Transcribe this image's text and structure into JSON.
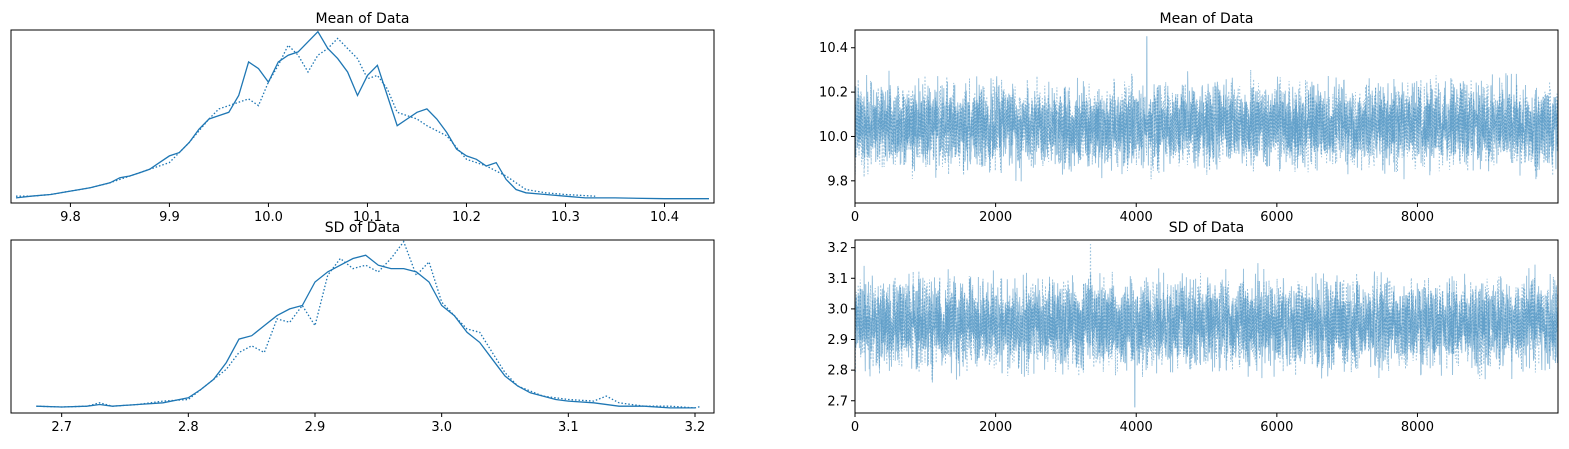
{
  "colors": {
    "line": "#1f77b4",
    "frame": "#000000"
  },
  "chart_data": [
    {
      "type": "line",
      "panel": "density",
      "title": "Mean of Data",
      "xlim": [
        9.74,
        10.45
      ],
      "ylim": [
        0,
        1.0
      ],
      "xticks": [
        "9.8",
        "9.9",
        "10.0",
        "10.1",
        "10.2",
        "10.3",
        "10.4"
      ],
      "yticks": [],
      "series": [
        {
          "style": "solid",
          "x": [
            9.745,
            9.76,
            9.78,
            9.8,
            9.82,
            9.84,
            9.85,
            9.86,
            9.87,
            9.88,
            9.89,
            9.9,
            9.91,
            9.92,
            9.93,
            9.94,
            9.95,
            9.96,
            9.97,
            9.98,
            9.99,
            10.0,
            10.01,
            10.02,
            10.03,
            10.04,
            10.05,
            10.06,
            10.07,
            10.08,
            10.09,
            10.1,
            10.11,
            10.12,
            10.13,
            10.14,
            10.15,
            10.16,
            10.17,
            10.18,
            10.19,
            10.2,
            10.21,
            10.22,
            10.23,
            10.24,
            10.25,
            10.26,
            10.28,
            10.3,
            10.32,
            10.35,
            10.4,
            10.445
          ],
          "y": [
            0.01,
            0.02,
            0.03,
            0.05,
            0.07,
            0.1,
            0.13,
            0.14,
            0.16,
            0.18,
            0.22,
            0.26,
            0.28,
            0.34,
            0.42,
            0.48,
            0.5,
            0.52,
            0.62,
            0.82,
            0.78,
            0.7,
            0.82,
            0.86,
            0.88,
            0.94,
            1.0,
            0.9,
            0.84,
            0.76,
            0.62,
            0.74,
            0.8,
            0.62,
            0.44,
            0.48,
            0.52,
            0.54,
            0.48,
            0.4,
            0.3,
            0.26,
            0.24,
            0.2,
            0.22,
            0.12,
            0.06,
            0.04,
            0.03,
            0.02,
            0.01,
            0.01,
            0.005,
            0.005
          ]
        },
        {
          "style": "dotted",
          "x": [
            9.745,
            9.76,
            9.78,
            9.8,
            9.82,
            9.84,
            9.86,
            9.88,
            9.9,
            9.92,
            9.94,
            9.95,
            9.96,
            9.97,
            9.98,
            9.99,
            10.0,
            10.01,
            10.02,
            10.03,
            10.04,
            10.05,
            10.06,
            10.07,
            10.08,
            10.09,
            10.1,
            10.11,
            10.12,
            10.13,
            10.14,
            10.15,
            10.16,
            10.18,
            10.2,
            10.22,
            10.24,
            10.26,
            10.28,
            10.3,
            10.33
          ],
          "y": [
            0.02,
            0.02,
            0.03,
            0.05,
            0.07,
            0.1,
            0.14,
            0.18,
            0.22,
            0.34,
            0.48,
            0.54,
            0.56,
            0.58,
            0.6,
            0.56,
            0.7,
            0.8,
            0.92,
            0.86,
            0.76,
            0.86,
            0.9,
            0.96,
            0.9,
            0.84,
            0.72,
            0.74,
            0.66,
            0.52,
            0.5,
            0.48,
            0.44,
            0.38,
            0.24,
            0.2,
            0.14,
            0.06,
            0.04,
            0.03,
            0.02
          ]
        }
      ]
    },
    {
      "type": "line",
      "panel": "trace",
      "title": "Mean of Data",
      "xlim": [
        0,
        9999
      ],
      "ylim": [
        9.7,
        10.48
      ],
      "xticks": [
        "0",
        "2000",
        "4000",
        "6000",
        "8000"
      ],
      "xtick_values": [
        0,
        2000,
        4000,
        6000,
        8000
      ],
      "yticks": [
        "9.8",
        "10.0",
        "10.2",
        "10.4"
      ],
      "ytick_values": [
        9.8,
        10.0,
        10.2,
        10.4
      ],
      "series": [
        {
          "style": "solid",
          "n": 10000,
          "center": 10.05,
          "spread": 0.09,
          "min": 9.74,
          "max": 10.45,
          "peak": {
            "x": 4150,
            "y": 10.45
          }
        },
        {
          "style": "dotted",
          "n": 10000,
          "center": 10.05,
          "spread": 0.085,
          "min": 9.76,
          "max": 10.36
        }
      ]
    },
    {
      "type": "line",
      "panel": "density",
      "title": "SD of Data",
      "xlim": [
        2.66,
        3.215
      ],
      "ylim": [
        0,
        1.0
      ],
      "xticks": [
        "2.7",
        "2.8",
        "2.9",
        "3.0",
        "3.1",
        "3.2"
      ],
      "yticks": [],
      "series": [
        {
          "style": "solid",
          "x": [
            2.68,
            2.7,
            2.72,
            2.73,
            2.74,
            2.76,
            2.78,
            2.8,
            2.81,
            2.82,
            2.83,
            2.84,
            2.85,
            2.86,
            2.87,
            2.88,
            2.89,
            2.9,
            2.91,
            2.92,
            2.93,
            2.94,
            2.95,
            2.96,
            2.97,
            2.98,
            2.99,
            3.0,
            3.01,
            3.02,
            3.03,
            3.04,
            3.05,
            3.06,
            3.07,
            3.08,
            3.09,
            3.1,
            3.12,
            3.14,
            3.16,
            3.18,
            3.2
          ],
          "y": [
            0.02,
            0.015,
            0.02,
            0.03,
            0.02,
            0.03,
            0.04,
            0.07,
            0.12,
            0.18,
            0.28,
            0.42,
            0.44,
            0.5,
            0.56,
            0.6,
            0.62,
            0.76,
            0.82,
            0.86,
            0.9,
            0.92,
            0.86,
            0.84,
            0.84,
            0.82,
            0.76,
            0.62,
            0.56,
            0.46,
            0.4,
            0.3,
            0.2,
            0.14,
            0.1,
            0.08,
            0.06,
            0.05,
            0.04,
            0.02,
            0.02,
            0.01,
            0.01
          ]
        },
        {
          "style": "dotted",
          "x": [
            2.68,
            2.7,
            2.72,
            2.73,
            2.74,
            2.76,
            2.78,
            2.8,
            2.82,
            2.83,
            2.84,
            2.85,
            2.86,
            2.87,
            2.88,
            2.89,
            2.9,
            2.91,
            2.92,
            2.93,
            2.94,
            2.95,
            2.96,
            2.97,
            2.98,
            2.99,
            3.0,
            3.01,
            3.02,
            3.03,
            3.04,
            3.05,
            3.06,
            3.08,
            3.1,
            3.12,
            3.13,
            3.14,
            3.16,
            3.18,
            3.2,
            3.205
          ],
          "y": [
            0.02,
            0.015,
            0.02,
            0.04,
            0.02,
            0.03,
            0.05,
            0.06,
            0.18,
            0.24,
            0.34,
            0.38,
            0.34,
            0.54,
            0.52,
            0.62,
            0.5,
            0.8,
            0.9,
            0.84,
            0.86,
            0.82,
            0.9,
            1.0,
            0.8,
            0.88,
            0.64,
            0.56,
            0.48,
            0.46,
            0.34,
            0.22,
            0.14,
            0.08,
            0.06,
            0.05,
            0.08,
            0.04,
            0.02,
            0.02,
            0.01,
            0.02
          ]
        }
      ]
    },
    {
      "type": "line",
      "panel": "trace",
      "title": "SD of Data",
      "xlim": [
        0,
        9999
      ],
      "ylim": [
        2.66,
        3.225
      ],
      "xticks": [
        "0",
        "2000",
        "4000",
        "6000",
        "8000"
      ],
      "xtick_values": [
        0,
        2000,
        4000,
        6000,
        8000
      ],
      "yticks": [
        "2.7",
        "2.8",
        "2.9",
        "3.0",
        "3.1",
        "3.2"
      ],
      "ytick_values": [
        2.7,
        2.8,
        2.9,
        3.0,
        3.1,
        3.2
      ],
      "series": [
        {
          "style": "solid",
          "n": 10000,
          "center": 2.95,
          "spread": 0.07,
          "min": 2.68,
          "max": 3.19,
          "peak": {
            "x": 3980,
            "y": 2.68
          }
        },
        {
          "style": "dotted",
          "n": 10000,
          "center": 2.95,
          "spread": 0.065,
          "min": 2.72,
          "max": 3.21,
          "peak": {
            "x": 3350,
            "y": 3.21
          }
        }
      ]
    }
  ]
}
